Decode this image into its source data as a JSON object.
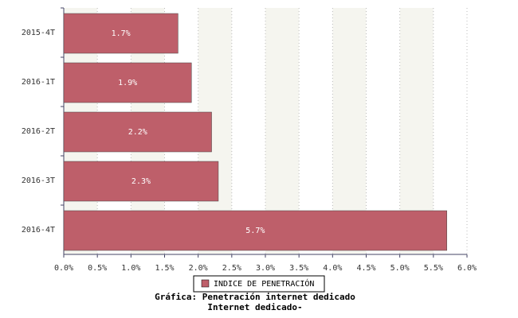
{
  "chart_data": {
    "type": "bar",
    "orientation": "horizontal",
    "title": "Gráfica: Penetración internet dedicado",
    "subtitle": "Internet dedicado-",
    "categories": [
      "2015-4T",
      "2016-1T",
      "2016-2T",
      "2016-3T",
      "2016-4T"
    ],
    "series": [
      {
        "name": "INDICE DE PENETRACIÓN",
        "color": "#be5f6a",
        "values": [
          1.7,
          1.9,
          2.2,
          2.3,
          5.7
        ],
        "value_labels": [
          "1.7%",
          "1.9%",
          "2.2%",
          "2.3%",
          "5.7%"
        ]
      }
    ],
    "xlim": [
      0,
      6
    ],
    "xticks": [
      {
        "value": 0,
        "label": "0.0%"
      },
      {
        "value": 0.5,
        "label": "0.5%"
      },
      {
        "value": 1,
        "label": "1.0%"
      },
      {
        "value": 1.5,
        "label": "1.5%"
      },
      {
        "value": 2,
        "label": "2.0%"
      },
      {
        "value": 2.5,
        "label": "2.5%"
      },
      {
        "value": 3,
        "label": "3.0%"
      },
      {
        "value": 3.5,
        "label": "3.5%"
      },
      {
        "value": 4,
        "label": "4.0%"
      },
      {
        "value": 4.5,
        "label": "4.5%"
      },
      {
        "value": 5,
        "label": "5.0%"
      },
      {
        "value": 5.5,
        "label": "5.5%"
      },
      {
        "value": 6,
        "label": "6.0%"
      }
    ],
    "grid": true,
    "legend": "bottom"
  }
}
